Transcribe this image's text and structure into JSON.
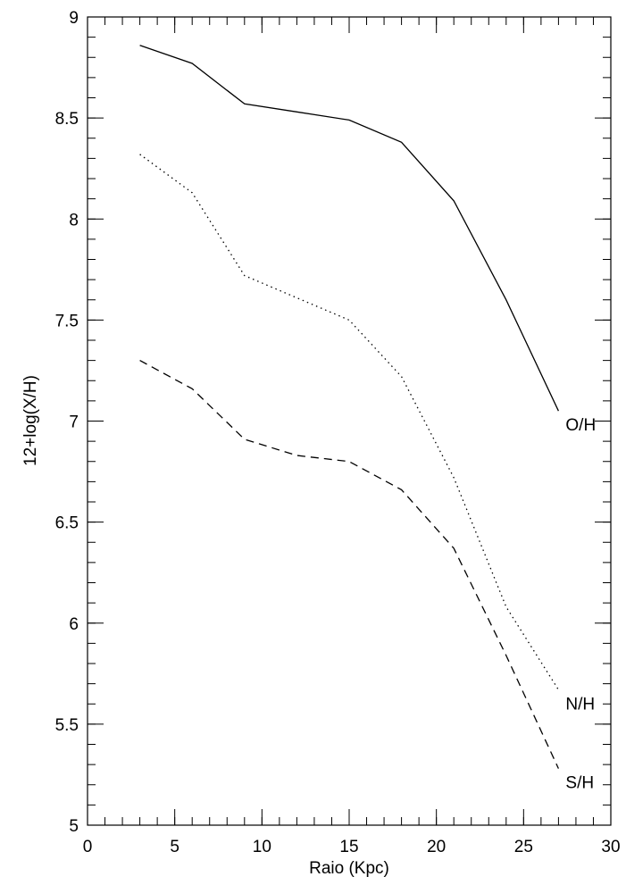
{
  "chart_data": {
    "type": "line",
    "xlabel": "Raio (Kpc)",
    "ylabel": "12+log(X/H)",
    "xlim": [
      0,
      30
    ],
    "ylim": [
      5,
      9
    ],
    "xticks": [
      0,
      5,
      10,
      15,
      20,
      25,
      30
    ],
    "yticks": [
      5,
      5.5,
      6,
      6.5,
      7,
      7.5,
      8,
      8.5,
      9
    ],
    "x_minor_step": 1,
    "y_minor_step": 0.1,
    "grid": false,
    "series": [
      {
        "name": "O/H",
        "style": "solid",
        "x": [
          3,
          6,
          9,
          12,
          15,
          18,
          21,
          24,
          27
        ],
        "y": [
          8.86,
          8.77,
          8.57,
          8.53,
          8.49,
          8.38,
          8.09,
          7.6,
          7.05
        ]
      },
      {
        "name": "N/H",
        "style": "dotted",
        "x": [
          3,
          6,
          9,
          12,
          15,
          18,
          21,
          24,
          27
        ],
        "y": [
          8.32,
          8.13,
          7.72,
          7.61,
          7.5,
          7.22,
          6.72,
          6.08,
          5.67
        ]
      },
      {
        "name": "S/H",
        "style": "dashed",
        "x": [
          3,
          6,
          9,
          12,
          15,
          18,
          21,
          24,
          27
        ],
        "y": [
          7.3,
          7.16,
          6.91,
          6.83,
          6.8,
          6.66,
          6.37,
          5.84,
          5.28
        ]
      }
    ]
  }
}
